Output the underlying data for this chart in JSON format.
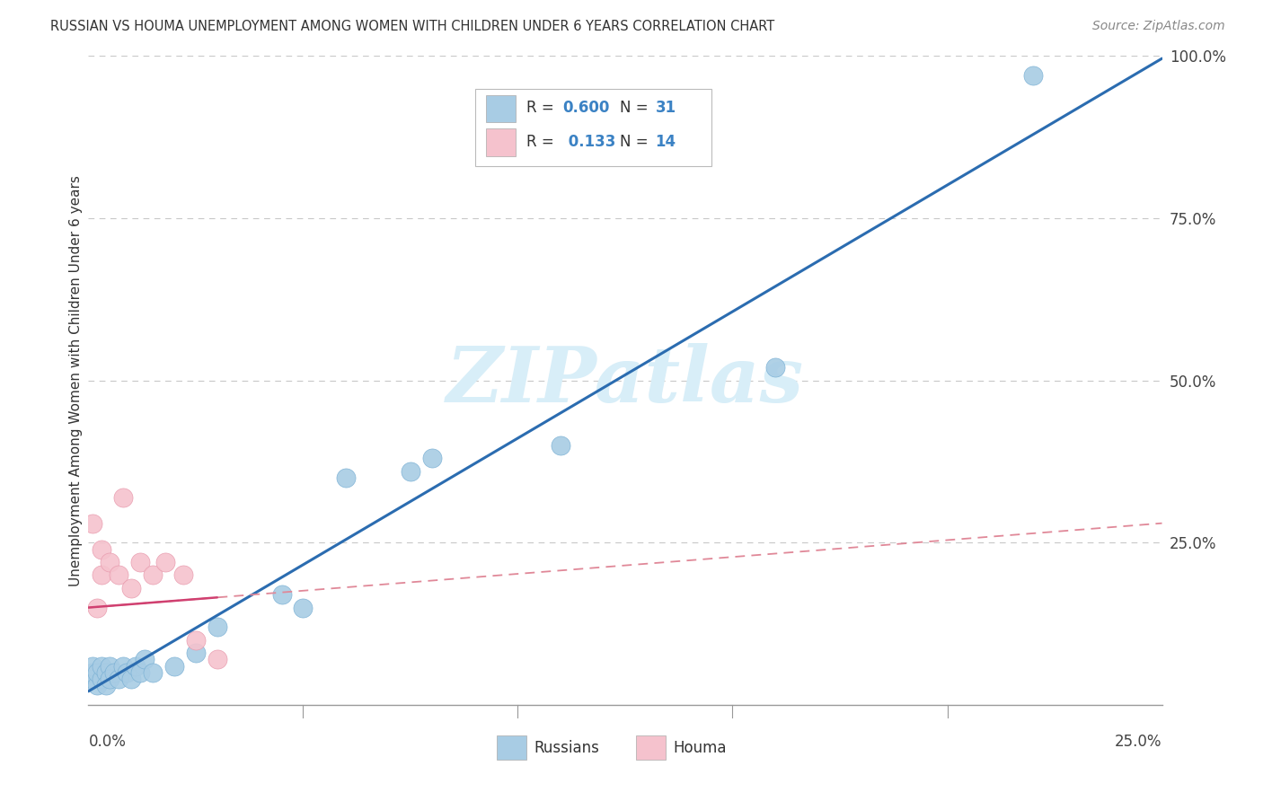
{
  "title": "RUSSIAN VS HOUMA UNEMPLOYMENT AMONG WOMEN WITH CHILDREN UNDER 6 YEARS CORRELATION CHART",
  "source": "Source: ZipAtlas.com",
  "ylabel": "Unemployment Among Women with Children Under 6 years",
  "xlim": [
    0,
    0.25
  ],
  "ylim": [
    0,
    1.0
  ],
  "yticks": [
    0.0,
    0.25,
    0.5,
    0.75,
    1.0
  ],
  "ytick_labels": [
    "",
    "25.0%",
    "50.0%",
    "75.0%",
    "100.0%"
  ],
  "russian_color": "#a8cce4",
  "russian_edge_color": "#7ab0d4",
  "houma_color": "#f5c2cd",
  "houma_edge_color": "#e899ac",
  "russian_line_color": "#2b6cb0",
  "houma_line_color": "#d04070",
  "houma_dash_color": "#e08898",
  "watermark_color": "#d8eef8",
  "legend_color": "#3b82c4",
  "russians_x": [
    0.001,
    0.001,
    0.001,
    0.002,
    0.002,
    0.003,
    0.003,
    0.004,
    0.004,
    0.005,
    0.005,
    0.006,
    0.007,
    0.008,
    0.009,
    0.01,
    0.011,
    0.012,
    0.013,
    0.015,
    0.02,
    0.025,
    0.03,
    0.045,
    0.05,
    0.06,
    0.075,
    0.08,
    0.11,
    0.16,
    0.22
  ],
  "russians_y": [
    0.04,
    0.05,
    0.06,
    0.03,
    0.05,
    0.04,
    0.06,
    0.05,
    0.03,
    0.06,
    0.04,
    0.05,
    0.04,
    0.06,
    0.05,
    0.04,
    0.06,
    0.05,
    0.07,
    0.05,
    0.06,
    0.08,
    0.12,
    0.17,
    0.15,
    0.35,
    0.36,
    0.38,
    0.4,
    0.52,
    0.97
  ],
  "houma_x": [
    0.001,
    0.002,
    0.003,
    0.003,
    0.005,
    0.007,
    0.008,
    0.01,
    0.012,
    0.015,
    0.018,
    0.022,
    0.025,
    0.03
  ],
  "houma_y": [
    0.28,
    0.15,
    0.2,
    0.24,
    0.22,
    0.2,
    0.32,
    0.18,
    0.22,
    0.2,
    0.22,
    0.2,
    0.1,
    0.07
  ],
  "legend_r_russian": "R = 0.600",
  "legend_n_russian": "N = 31",
  "legend_r_houma": "R =  0.133",
  "legend_n_houma": "N = 14",
  "watermark": "ZIPatlas"
}
